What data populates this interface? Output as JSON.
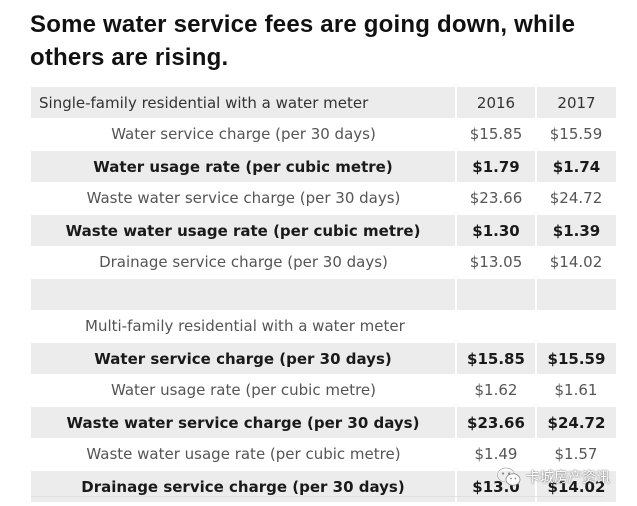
{
  "title": "Some water service fees are going down, while others are rising.",
  "table": {
    "header": {
      "label": "Single-family residential with a water meter",
      "col2016": "2016",
      "col2017": "2017"
    },
    "single_family": [
      {
        "label": "Water service charge (per 30 days)",
        "v2016": "$15.85",
        "v2017": "$15.59"
      },
      {
        "label": "Water usage rate (per cubic metre)",
        "v2016": "$1.79",
        "v2017": "$1.74"
      },
      {
        "label": "Waste water service charge (per 30 days)",
        "v2016": "$23.66",
        "v2017": "$24.72"
      },
      {
        "label": "Waste water usage rate (per cubic metre)",
        "v2016": "$1.30",
        "v2017": "$1.39"
      },
      {
        "label": "Drainage service charge (per 30 days)",
        "v2016": "$13.05",
        "v2017": "$14.02"
      }
    ],
    "multi_family_heading": "Multi-family residential with a water meter",
    "multi_family": [
      {
        "label": "Water service charge (per 30 days)",
        "v2016": "$15.85",
        "v2017": "$15.59"
      },
      {
        "label": "Water usage rate (per cubic metre)",
        "v2016": "$1.62",
        "v2017": "$1.61"
      },
      {
        "label": "Waste water service charge (per 30 days)",
        "v2016": "$23.66",
        "v2017": "$24.72"
      },
      {
        "label": "Waste water usage rate (per cubic metre)",
        "v2016": "$1.49",
        "v2017": "$1.57"
      },
      {
        "label": "Drainage service charge (per 30 days)",
        "v2016": "$13.0",
        "v2017": "$14.02"
      }
    ]
  },
  "watermark": {
    "text": "卡城房产资讯",
    "icon": "wechat-icon"
  }
}
